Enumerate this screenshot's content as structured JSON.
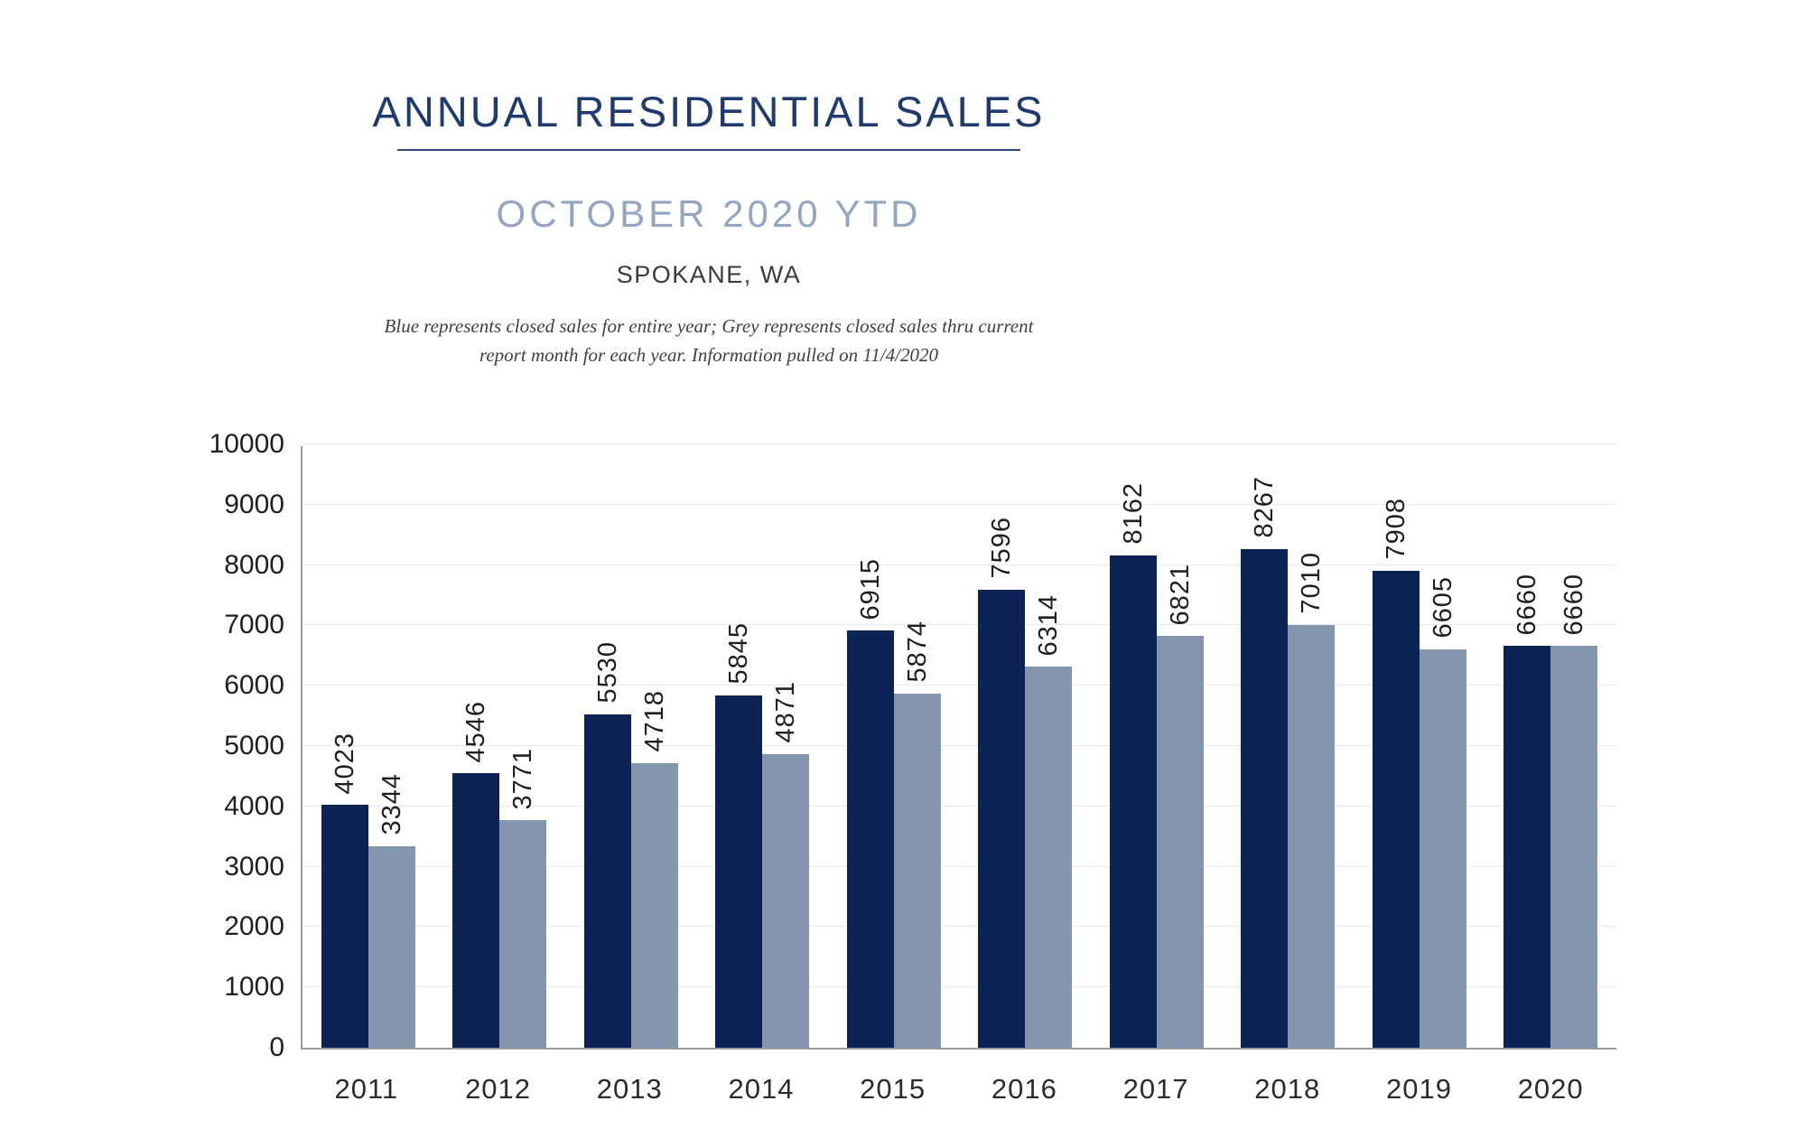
{
  "header": {
    "title": "ANNUAL RESIDENTIAL SALES",
    "subtitle": "OCTOBER 2020 YTD",
    "location": "SPOKANE, WA",
    "note_line1": "Blue represents closed sales for entire year; Grey represents closed sales thru current",
    "note_line2": "report month for each year.  Information pulled on 11/4/2020"
  },
  "theme": {
    "title_color": "#1E3A6E",
    "subtitle_color": "#94A5BF",
    "bar_blue": "#0E2355",
    "bar_grey": "#8496AE",
    "gridline_color": "#E7EAF3",
    "axis_color": "#999999"
  },
  "chart_data": {
    "type": "bar",
    "categories": [
      "2011",
      "2012",
      "2013",
      "2014",
      "2015",
      "2016",
      "2017",
      "2018",
      "2019",
      "2020"
    ],
    "series": [
      {
        "name": "Closed sales for entire year",
        "color": "#0E2355",
        "values": [
          4023,
          4546,
          5530,
          5845,
          6915,
          7596,
          8162,
          8267,
          7908,
          6660
        ]
      },
      {
        "name": "Closed sales thru current report month",
        "color": "#8496AE",
        "values": [
          3344,
          3771,
          4718,
          4871,
          5874,
          6314,
          6821,
          7010,
          6605,
          6660
        ]
      }
    ],
    "title": "ANNUAL RESIDENTIAL SALES — OCTOBER 2020 YTD — SPOKANE, WA",
    "xlabel": "",
    "ylabel": "",
    "ylim": [
      0,
      10000
    ],
    "ytick_interval": 1000,
    "grid": true,
    "legend_position": "none",
    "data_labels": "vertical-rotated-above-bars"
  }
}
